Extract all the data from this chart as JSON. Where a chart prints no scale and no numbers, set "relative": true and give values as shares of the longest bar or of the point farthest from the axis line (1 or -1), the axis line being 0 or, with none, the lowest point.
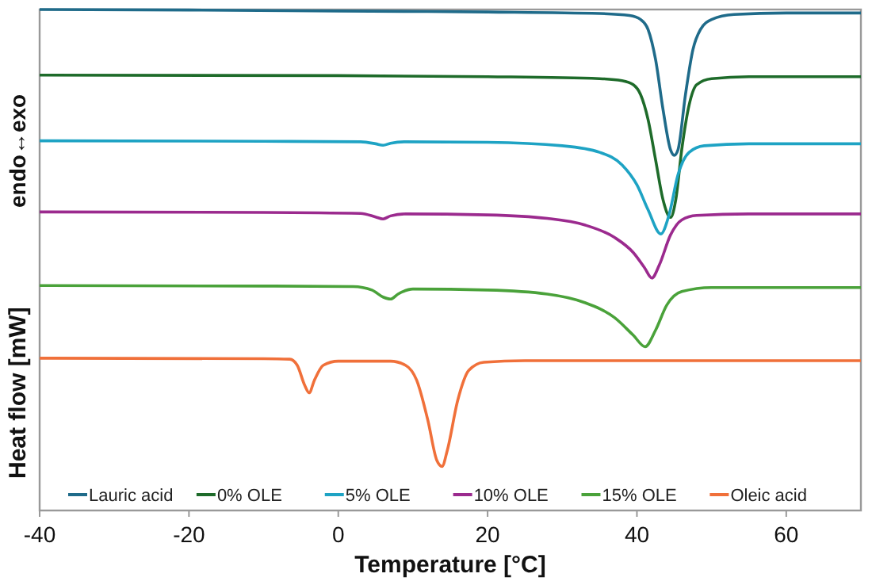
{
  "chart_data": {
    "type": "line",
    "relative": true,
    "xlabel": "Temperature [°C]",
    "ylabel": "Heat flow [mW]",
    "annotations": [
      "endo↔exo"
    ],
    "xlim": [
      -40,
      70
    ],
    "xticks": [
      -40,
      -20,
      0,
      20,
      40,
      60
    ],
    "legend": "bottom",
    "grid": false,
    "marker": "none",
    "line_style": "solid",
    "series": [
      {
        "name": "Lauric acid",
        "color": "#1f6b8a",
        "x": [
          -40,
          -20,
          0,
          20,
          35,
          39,
          40.5,
          41.5,
          42.5,
          43.5,
          44.5,
          45,
          45.5,
          46.5,
          47.5,
          48.5,
          50,
          53,
          60,
          70
        ],
        "values": [
          1.0,
          0.999,
          0.997,
          0.995,
          0.992,
          0.988,
          0.98,
          0.96,
          0.9,
          0.8,
          0.72,
          0.709,
          0.72,
          0.83,
          0.92,
          0.96,
          0.98,
          0.99,
          0.993,
          0.993
        ]
      },
      {
        "name": "0% OLE",
        "color": "#1e6b2a",
        "x": [
          -40,
          0,
          20,
          35,
          38,
          39.5,
          40.5,
          41.5,
          42.5,
          43.5,
          44.5,
          45.2,
          46,
          47,
          48,
          50,
          55,
          70
        ],
        "values": [
          0.869,
          0.868,
          0.866,
          0.862,
          0.858,
          0.85,
          0.83,
          0.78,
          0.7,
          0.62,
          0.585,
          0.62,
          0.72,
          0.81,
          0.85,
          0.862,
          0.866,
          0.866
        ]
      },
      {
        "name": "5% OLE",
        "color": "#1ea3c4",
        "x": [
          -40,
          -10,
          3,
          5,
          6,
          7,
          9,
          20,
          30,
          35,
          38,
          40,
          41.5,
          43.2,
          44.3,
          45.5,
          47,
          49,
          55,
          70
        ],
        "values": [
          0.738,
          0.737,
          0.736,
          0.732,
          0.729,
          0.733,
          0.736,
          0.735,
          0.728,
          0.715,
          0.69,
          0.65,
          0.6,
          0.552,
          0.59,
          0.67,
          0.715,
          0.728,
          0.732,
          0.732
        ]
      },
      {
        "name": "10% OLE",
        "color": "#9b2a8e",
        "x": [
          -40,
          -10,
          3,
          5,
          6,
          7,
          9,
          20,
          28,
          33,
          37,
          39.5,
          41,
          42,
          43,
          44.5,
          46,
          48,
          55,
          70
        ],
        "values": [
          0.596,
          0.595,
          0.593,
          0.586,
          0.582,
          0.588,
          0.592,
          0.59,
          0.583,
          0.57,
          0.545,
          0.515,
          0.485,
          0.464,
          0.49,
          0.55,
          0.58,
          0.589,
          0.592,
          0.592
        ]
      },
      {
        "name": "15% OLE",
        "color": "#4aa23a",
        "x": [
          -40,
          -10,
          2,
          4.5,
          6,
          7,
          8,
          10,
          20,
          28,
          33,
          37,
          39.5,
          41.1,
          42.5,
          44,
          46,
          50,
          60,
          70
        ],
        "values": [
          0.449,
          0.448,
          0.447,
          0.44,
          0.426,
          0.422,
          0.432,
          0.442,
          0.44,
          0.432,
          0.415,
          0.385,
          0.35,
          0.327,
          0.36,
          0.41,
          0.437,
          0.445,
          0.445,
          0.445
        ]
      },
      {
        "name": "Oleic acid",
        "color": "#f0703a",
        "x": [
          -40,
          -10,
          -6.5,
          -5.5,
          -4.5,
          -3.9,
          -3.2,
          -2,
          0,
          7,
          9,
          10.5,
          12,
          13.2,
          13.9,
          14.6,
          16,
          17.5,
          19.5,
          25,
          70
        ],
        "values": [
          0.304,
          0.303,
          0.302,
          0.29,
          0.25,
          0.235,
          0.26,
          0.29,
          0.298,
          0.298,
          0.29,
          0.26,
          0.18,
          0.1,
          0.088,
          0.12,
          0.22,
          0.28,
          0.296,
          0.299,
          0.299
        ]
      }
    ]
  }
}
